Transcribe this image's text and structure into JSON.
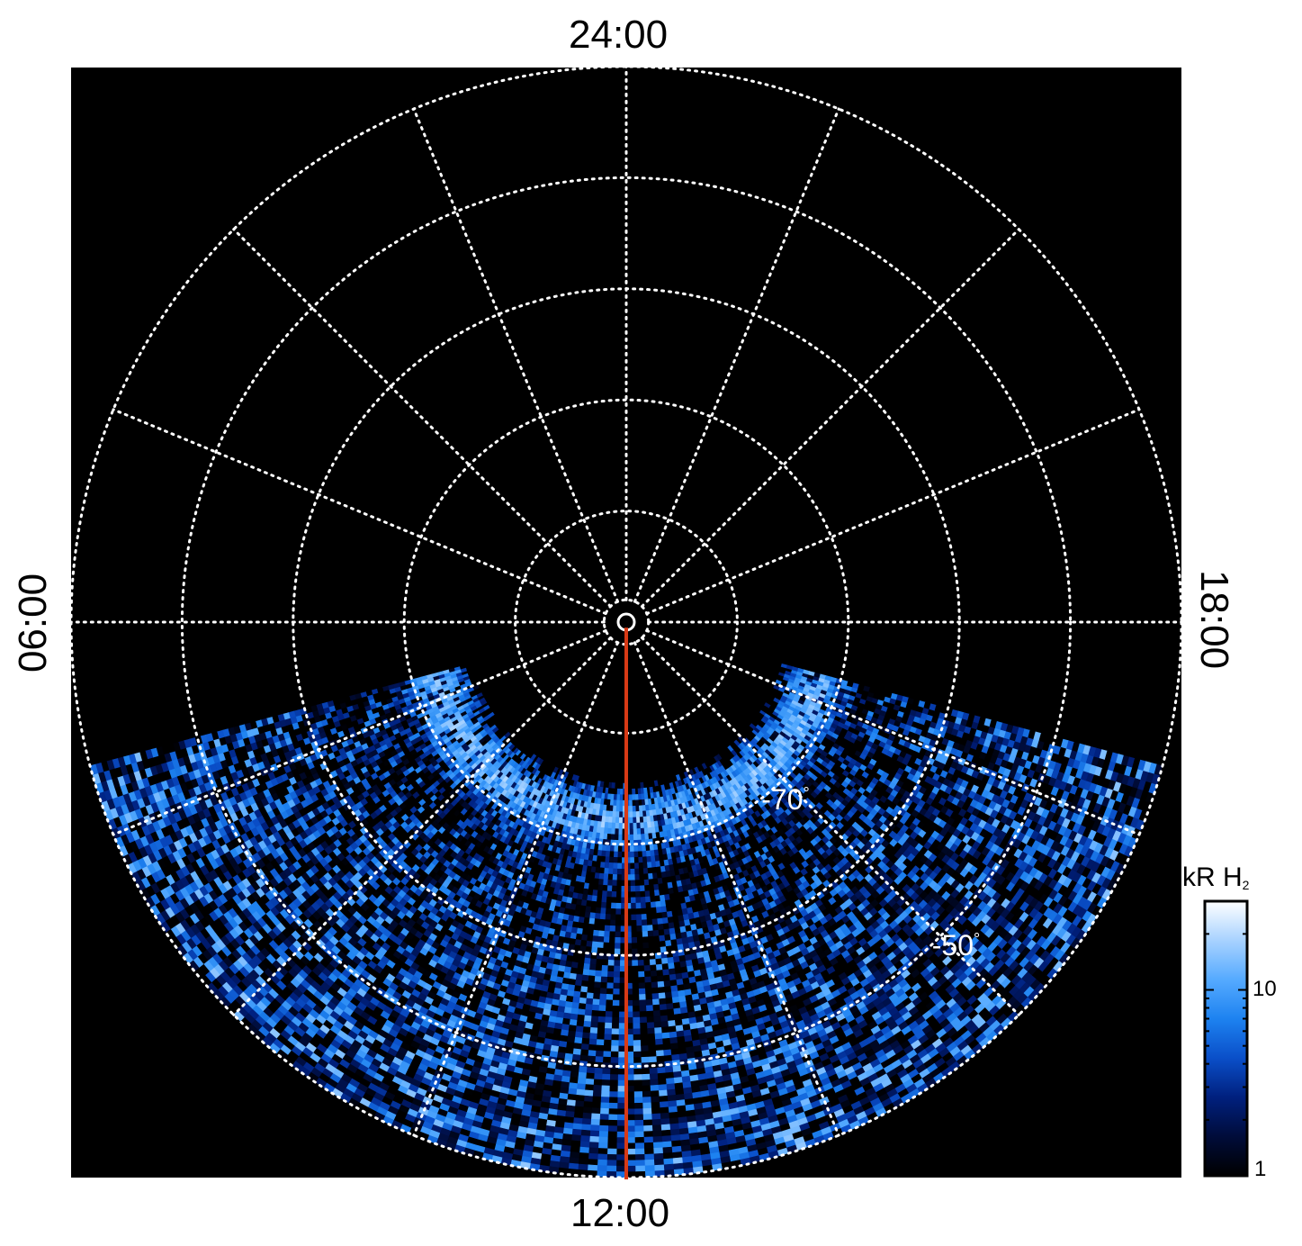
{
  "chart_data": {
    "type": "heatmap",
    "projection": "polar (local time vs latitude)",
    "center_latitude": -90,
    "outer_latitude": -40,
    "latitude_circles": [
      -50,
      -60,
      -70,
      -80,
      -88
    ],
    "latitude_labels": [
      {
        "text": "-70",
        "unit": "°",
        "latitude": -70,
        "local_time": 14.5
      },
      {
        "text": "-50",
        "unit": "°",
        "latitude": -50,
        "local_time": 14.9
      }
    ],
    "meridian_spacing_hours": 1.5,
    "local_time_labels": {
      "top": "24:00",
      "bottom": "12:00",
      "left": "06:00",
      "right": "18:00"
    },
    "noon_line": {
      "local_time": 12,
      "from_latitude": -89.5,
      "to_latitude": -40,
      "color": "#d83a16"
    },
    "data_coverage": {
      "local_time_start": 7.0,
      "local_time_end": 17.0,
      "min_latitude": -76
    },
    "emission_feature": {
      "description_units": "kR H2",
      "peak_latitude": -72
    },
    "colorbar": {
      "title": "kR H",
      "title_sub": "2",
      "scale": "log",
      "range": [
        1,
        30
      ],
      "tick_labels": [
        {
          "value": 10,
          "text": "10"
        },
        {
          "value": 1,
          "text": "1"
        }
      ],
      "colors": [
        "#000000",
        "#000c3a",
        "#00207e",
        "#0a4fc9",
        "#1d82f0",
        "#55aaff",
        "#a8d2ff",
        "#ffffff"
      ]
    },
    "background_color": "#000000",
    "grid_color": "#ffffff",
    "grid": true
  }
}
